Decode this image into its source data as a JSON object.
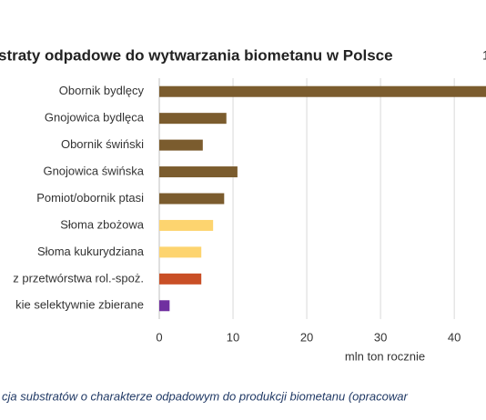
{
  "chart_data": {
    "type": "barh",
    "title": "straty odpadowe do wytwarzania biometanu w Polsce",
    "corner_text": "1",
    "categories": [
      "Obornik bydlęcy",
      "Gnojowica bydlęca",
      "Obornik świński",
      "Gnojowica świńska",
      "Pomiot/obornik ptasi",
      "Słoma zbożowa",
      "Słoma kukurydziana",
      "z przetwórstwa rol.-spoż.",
      "kie selektywnie zbierane"
    ],
    "values": [
      46,
      9.1,
      5.9,
      10.6,
      8.8,
      7.3,
      5.7,
      5.7,
      1.4
    ],
    "colors": [
      "#7b5c2e",
      "#7b5c2e",
      "#7b5c2e",
      "#7b5c2e",
      "#7b5c2e",
      "#fdd46f",
      "#fdd46f",
      "#c94f26",
      "#7030a0"
    ],
    "xlim": [
      0,
      44.3
    ],
    "xticks": [
      0,
      10,
      20,
      30,
      40
    ],
    "grid": true,
    "xlabel": "mln ton rocznie",
    "caption": "cja substratów o charakterze odpadowym do produkcji biometanu (opracowar"
  }
}
